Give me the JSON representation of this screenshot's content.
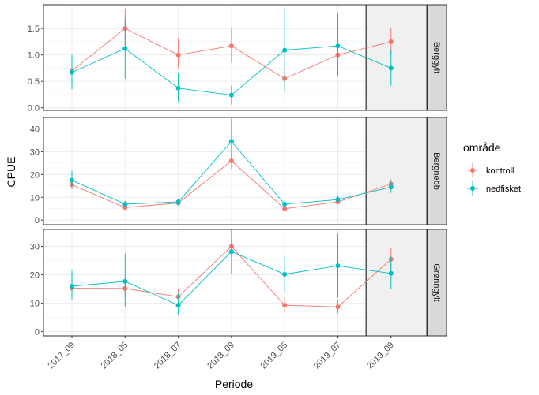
{
  "chart_data": {
    "type": "line",
    "xlabel": "Periode",
    "ylabel": "CPUE",
    "categories": [
      "2017_09",
      "2018_05",
      "2018_07",
      "2018_09",
      "2019_05",
      "2019_07",
      "2019_09"
    ],
    "shaded_category": "2019_09",
    "grid": true,
    "legend": {
      "title": "område",
      "placement": "right",
      "entries": [
        {
          "name": "kontroll",
          "color": "#F8766D"
        },
        {
          "name": "nedfisket",
          "color": "#00BFC4"
        }
      ]
    },
    "panels": [
      {
        "name": "Berggylt",
        "ylim": [
          -0.05,
          1.95
        ],
        "yticks": [
          0.0,
          0.5,
          1.0,
          1.5
        ],
        "yticklabels": [
          "0.0",
          "0.5",
          "1.0",
          "1.5"
        ],
        "series": [
          {
            "name": "kontroll",
            "values": [
              0.7,
              1.5,
              1.0,
              1.17,
              0.55,
              1.0,
              1.25
            ],
            "lower": [
              0.55,
              1.15,
              0.75,
              0.85,
              0.35,
              0.75,
              1.0
            ],
            "upper": [
              0.88,
              1.88,
              1.32,
              1.52,
              0.75,
              1.25,
              1.52
            ]
          },
          {
            "name": "nedfisket",
            "values": [
              0.67,
              1.12,
              0.37,
              0.24,
              1.09,
              1.17,
              0.75
            ],
            "lower": [
              0.35,
              0.55,
              0.1,
              0.06,
              0.3,
              0.6,
              0.42
            ],
            "upper": [
              1.0,
              1.7,
              0.65,
              0.42,
              1.88,
              1.78,
              1.1
            ]
          }
        ]
      },
      {
        "name": "Bergnebb",
        "ylim": [
          -2,
          45
        ],
        "yticks": [
          0,
          10,
          20,
          30,
          40
        ],
        "yticklabels": [
          "0",
          "10",
          "20",
          "30",
          "40"
        ],
        "series": [
          {
            "name": "kontroll",
            "values": [
              15.5,
              5.5,
              7.5,
              26.0,
              5.0,
              8.0,
              15.8
            ],
            "lower": [
              13.5,
              4.5,
              6.5,
              22.5,
              4.0,
              7.0,
              13.5
            ],
            "upper": [
              17.5,
              6.5,
              8.5,
              29.5,
              6.0,
              9.0,
              18.0
            ]
          },
          {
            "name": "nedfisket",
            "values": [
              17.5,
              7.0,
              8.0,
              34.5,
              7.0,
              9.0,
              14.5
            ],
            "lower": [
              14.5,
              5.5,
              6.5,
              27.0,
              5.5,
              7.0,
              12.0
            ],
            "upper": [
              21.5,
              8.5,
              9.5,
              44.5,
              8.5,
              10.5,
              17.0
            ]
          }
        ]
      },
      {
        "name": "Grønngylt",
        "ylim": [
          -1.5,
          36
        ],
        "yticks": [
          0,
          10,
          20,
          30
        ],
        "yticklabels": [
          "0",
          "10",
          "20",
          "30"
        ],
        "series": [
          {
            "name": "kontroll",
            "values": [
              15.3,
              15.2,
              12.3,
              30.0,
              9.3,
              8.7,
              25.5
            ],
            "lower": [
              12.0,
              12.0,
              9.5,
              26.5,
              6.5,
              6.5,
              21.5
            ],
            "upper": [
              18.5,
              18.5,
              15.0,
              33.5,
              12.0,
              11.0,
              29.5
            ]
          },
          {
            "name": "nedfisket",
            "values": [
              16.0,
              17.7,
              9.3,
              28.2,
              20.2,
              23.2,
              20.5
            ],
            "lower": [
              11.0,
              8.5,
              6.0,
              20.5,
              14.0,
              12.0,
              15.0
            ],
            "upper": [
              21.5,
              27.5,
              13.5,
              36.0,
              26.5,
              34.5,
              26.5
            ]
          }
        ]
      }
    ]
  }
}
